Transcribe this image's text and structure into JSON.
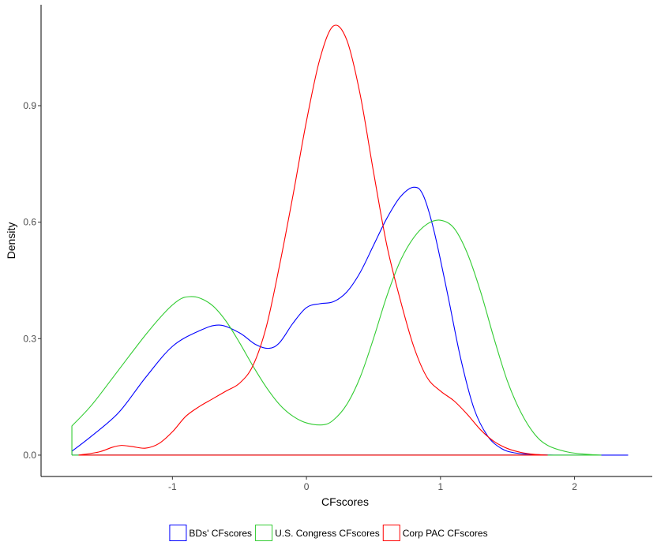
{
  "chart_data": {
    "type": "line",
    "title": "",
    "xlabel": "CFscores",
    "ylabel": "Density",
    "xlim": [
      -1.98,
      2.58
    ],
    "ylim": [
      -0.055,
      1.16
    ],
    "x_ticks": [
      -1,
      0,
      1,
      2
    ],
    "x_tick_labels": [
      "-1",
      "0",
      "1",
      "2"
    ],
    "y_ticks": [
      0.0,
      0.3,
      0.6,
      0.9
    ],
    "y_tick_labels": [
      "0.0",
      "0.3",
      "0.6",
      "0.9"
    ],
    "grid": false,
    "legend_position": "bottom",
    "series": [
      {
        "name": "BDs' CFscores",
        "color": "#0000ff",
        "points": [
          [
            -1.75,
            0.01
          ],
          [
            -1.6,
            0.05
          ],
          [
            -1.4,
            0.11
          ],
          [
            -1.2,
            0.2
          ],
          [
            -1.0,
            0.28
          ],
          [
            -0.8,
            0.32
          ],
          [
            -0.65,
            0.335
          ],
          [
            -0.5,
            0.315
          ],
          [
            -0.38,
            0.285
          ],
          [
            -0.28,
            0.275
          ],
          [
            -0.2,
            0.29
          ],
          [
            -0.1,
            0.34
          ],
          [
            0.0,
            0.38
          ],
          [
            0.1,
            0.39
          ],
          [
            0.2,
            0.395
          ],
          [
            0.3,
            0.42
          ],
          [
            0.4,
            0.47
          ],
          [
            0.5,
            0.54
          ],
          [
            0.6,
            0.61
          ],
          [
            0.7,
            0.665
          ],
          [
            0.8,
            0.69
          ],
          [
            0.87,
            0.67
          ],
          [
            0.95,
            0.58
          ],
          [
            1.05,
            0.42
          ],
          [
            1.15,
            0.25
          ],
          [
            1.25,
            0.12
          ],
          [
            1.35,
            0.05
          ],
          [
            1.45,
            0.018
          ],
          [
            1.55,
            0.006
          ],
          [
            1.7,
            0.0015
          ],
          [
            1.85,
            0.0
          ]
        ],
        "baseline_to": 2.4
      },
      {
        "name": "U.S. Congress CFscores",
        "color": "#33cc33",
        "points": [
          [
            -1.75,
            0.075
          ],
          [
            -1.6,
            0.13
          ],
          [
            -1.4,
            0.22
          ],
          [
            -1.2,
            0.31
          ],
          [
            -1.05,
            0.37
          ],
          [
            -0.95,
            0.4
          ],
          [
            -0.88,
            0.408
          ],
          [
            -0.8,
            0.405
          ],
          [
            -0.7,
            0.385
          ],
          [
            -0.6,
            0.345
          ],
          [
            -0.5,
            0.29
          ],
          [
            -0.4,
            0.23
          ],
          [
            -0.3,
            0.175
          ],
          [
            -0.2,
            0.13
          ],
          [
            -0.1,
            0.1
          ],
          [
            0.0,
            0.083
          ],
          [
            0.12,
            0.078
          ],
          [
            0.2,
            0.09
          ],
          [
            0.3,
            0.13
          ],
          [
            0.4,
            0.2
          ],
          [
            0.5,
            0.3
          ],
          [
            0.6,
            0.41
          ],
          [
            0.7,
            0.5
          ],
          [
            0.8,
            0.56
          ],
          [
            0.9,
            0.595
          ],
          [
            1.0,
            0.605
          ],
          [
            1.1,
            0.585
          ],
          [
            1.2,
            0.52
          ],
          [
            1.3,
            0.42
          ],
          [
            1.4,
            0.3
          ],
          [
            1.5,
            0.19
          ],
          [
            1.6,
            0.11
          ],
          [
            1.7,
            0.055
          ],
          [
            1.8,
            0.025
          ],
          [
            1.95,
            0.008
          ],
          [
            2.1,
            0.002
          ],
          [
            2.2,
            0.0
          ]
        ]
      },
      {
        "name": "Corp PAC CFscores",
        "color": "#ff0000",
        "points": [
          [
            -1.7,
            0.0
          ],
          [
            -1.55,
            0.008
          ],
          [
            -1.45,
            0.02
          ],
          [
            -1.38,
            0.025
          ],
          [
            -1.3,
            0.022
          ],
          [
            -1.2,
            0.018
          ],
          [
            -1.1,
            0.03
          ],
          [
            -1.0,
            0.06
          ],
          [
            -0.9,
            0.1
          ],
          [
            -0.8,
            0.125
          ],
          [
            -0.7,
            0.145
          ],
          [
            -0.6,
            0.165
          ],
          [
            -0.5,
            0.185
          ],
          [
            -0.4,
            0.23
          ],
          [
            -0.3,
            0.33
          ],
          [
            -0.2,
            0.49
          ],
          [
            -0.1,
            0.67
          ],
          [
            0.0,
            0.86
          ],
          [
            0.1,
            1.02
          ],
          [
            0.2,
            1.105
          ],
          [
            0.3,
            1.07
          ],
          [
            0.4,
            0.93
          ],
          [
            0.5,
            0.73
          ],
          [
            0.6,
            0.54
          ],
          [
            0.7,
            0.4
          ],
          [
            0.8,
            0.28
          ],
          [
            0.9,
            0.2
          ],
          [
            1.0,
            0.165
          ],
          [
            1.1,
            0.14
          ],
          [
            1.2,
            0.105
          ],
          [
            1.3,
            0.065
          ],
          [
            1.4,
            0.035
          ],
          [
            1.5,
            0.017
          ],
          [
            1.6,
            0.007
          ],
          [
            1.7,
            0.002
          ],
          [
            1.8,
            0.0
          ]
        ]
      }
    ]
  }
}
